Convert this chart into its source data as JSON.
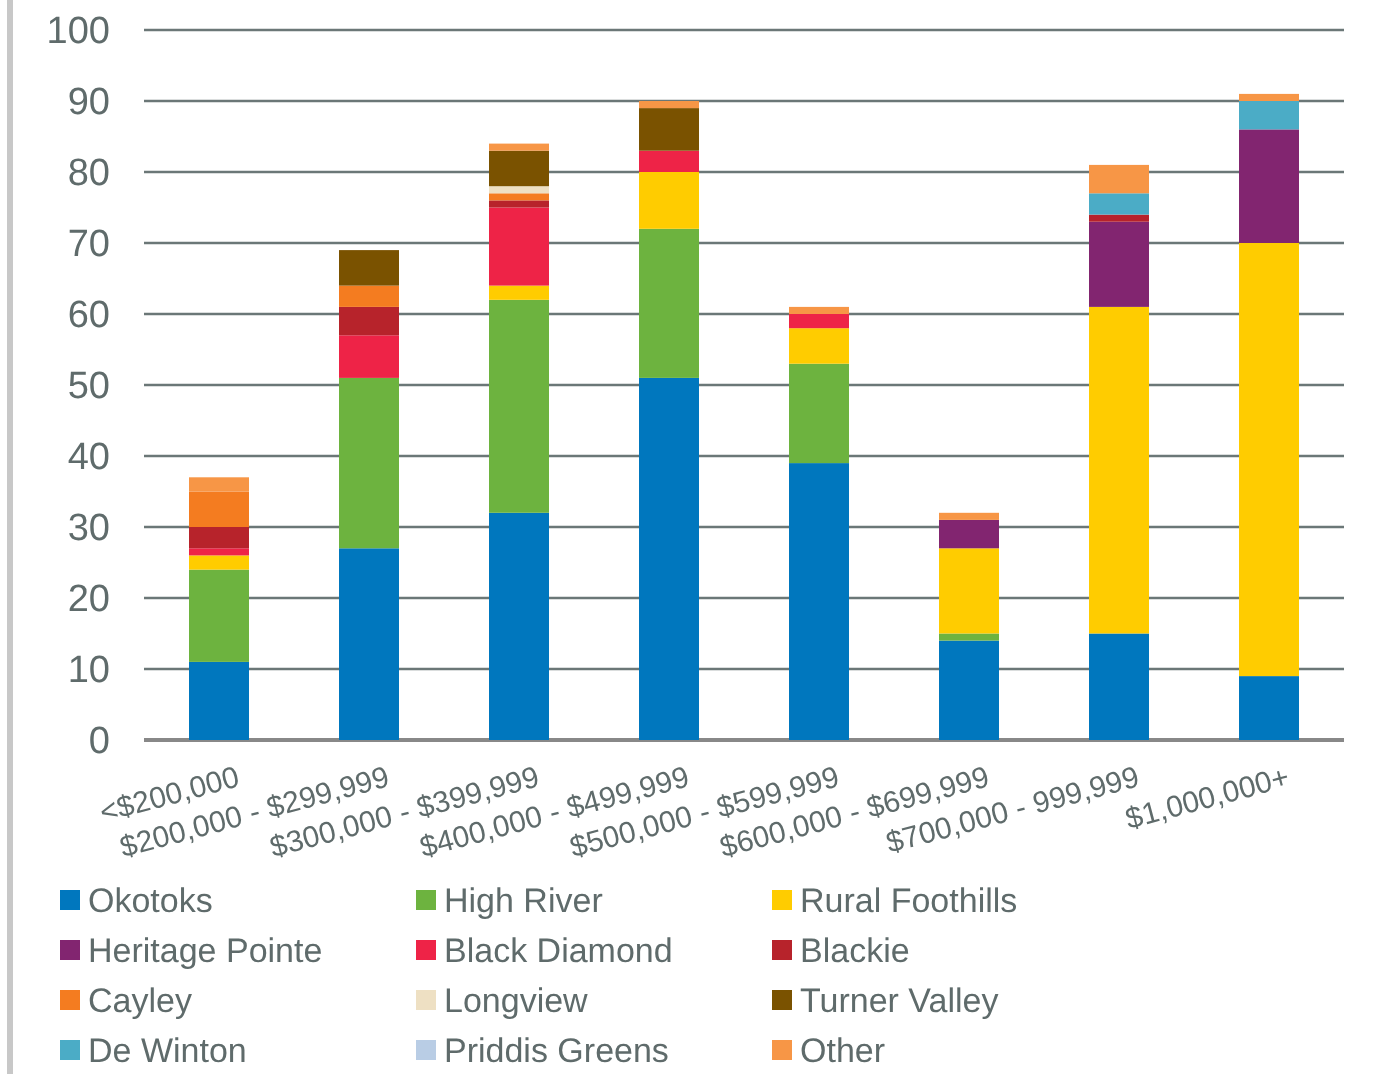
{
  "chart_data": {
    "type": "bar",
    "stacked": true,
    "categories": [
      "<$200,000",
      "$200,000 - $299,999",
      "$300,000 - $399,999",
      "$400,000 - $499,999",
      "$500,000 - $599,999",
      "$600,000 - $699,999",
      "$700,000 - 999,999",
      "$1,000,000+"
    ],
    "series": [
      {
        "name": "Okotoks",
        "color": "#0077be",
        "values": [
          11,
          27,
          32,
          51,
          39,
          14,
          15,
          9
        ]
      },
      {
        "name": "High River",
        "color": "#6db33f",
        "values": [
          13,
          24,
          30,
          21,
          14,
          1,
          0,
          0
        ]
      },
      {
        "name": "Rural Foothills",
        "color": "#ffcc00",
        "values": [
          2,
          0,
          2,
          8,
          5,
          12,
          46,
          61
        ]
      },
      {
        "name": "Heritage Pointe",
        "color": "#822570",
        "values": [
          0,
          0,
          0,
          0,
          0,
          4,
          12,
          16
        ]
      },
      {
        "name": "Black Diamond",
        "color": "#ee2347",
        "values": [
          1,
          6,
          11,
          3,
          2,
          0,
          0,
          0
        ]
      },
      {
        "name": "Blackie",
        "color": "#b7232b",
        "values": [
          3,
          4,
          1,
          0,
          0,
          0,
          1,
          0
        ]
      },
      {
        "name": "Cayley",
        "color": "#f47c20",
        "values": [
          5,
          3,
          1,
          0,
          0,
          0,
          0,
          0
        ]
      },
      {
        "name": "Longview",
        "color": "#eee0c3",
        "values": [
          0,
          0,
          1,
          0,
          0,
          0,
          0,
          0
        ]
      },
      {
        "name": "Turner Valley",
        "color": "#7a5200",
        "values": [
          0,
          5,
          5,
          6,
          0,
          0,
          0,
          0
        ]
      },
      {
        "name": "De Winton",
        "color": "#4bacc6",
        "values": [
          0,
          0,
          0,
          0,
          0,
          0,
          3,
          4
        ]
      },
      {
        "name": "Priddis Greens",
        "color": "#b9cde5",
        "values": [
          0,
          0,
          0,
          0,
          0,
          0,
          0,
          0
        ]
      },
      {
        "name": "Other",
        "color": "#f79646",
        "values": [
          2,
          0,
          1,
          1,
          1,
          1,
          4,
          1
        ]
      }
    ],
    "ylim": [
      0,
      100
    ],
    "yticks": [
      0,
      10,
      20,
      30,
      40,
      50,
      60,
      70,
      80,
      90,
      100
    ],
    "grid": "y",
    "legend": "bottom"
  }
}
